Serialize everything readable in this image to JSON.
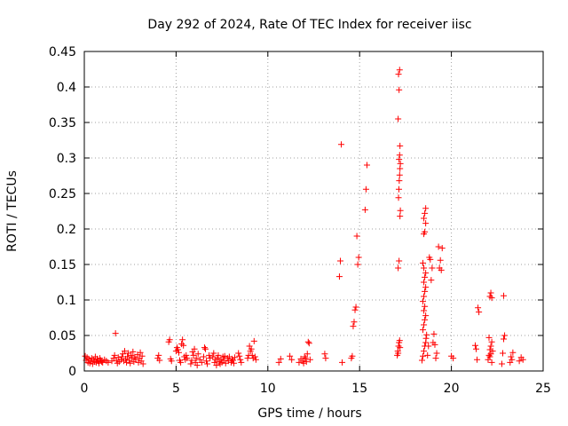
{
  "chart_data": {
    "type": "scatter",
    "title": "Day 292 of 2024, Rate Of TEC Index for receiver iisc",
    "xlabel": "GPS time / hours",
    "ylabel": "ROTI / TECUs",
    "xlim": [
      0,
      25
    ],
    "ylim": [
      0,
      0.45
    ],
    "x_ticks": [
      "0",
      "5",
      "10",
      "15",
      "20",
      "25"
    ],
    "y_ticks": [
      "0",
      "0.05",
      "0.1",
      "0.15",
      "0.2",
      "0.25",
      "0.3",
      "0.35",
      "0.4",
      "0.45"
    ],
    "grid": true,
    "marker": "+",
    "marker_color": "#ff0000",
    "series": [
      {
        "name": "ROTI",
        "points": [
          [
            0.05,
            0.021
          ],
          [
            0.1,
            0.015
          ],
          [
            0.15,
            0.019
          ],
          [
            0.2,
            0.012
          ],
          [
            0.25,
            0.017
          ],
          [
            0.3,
            0.011
          ],
          [
            0.35,
            0.014
          ],
          [
            0.4,
            0.018
          ],
          [
            0.45,
            0.01
          ],
          [
            0.5,
            0.016
          ],
          [
            0.55,
            0.013
          ],
          [
            0.6,
            0.02
          ],
          [
            0.65,
            0.012
          ],
          [
            0.7,
            0.017
          ],
          [
            0.75,
            0.014
          ],
          [
            0.8,
            0.011
          ],
          [
            0.85,
            0.018
          ],
          [
            0.9,
            0.015
          ],
          [
            0.95,
            0.013
          ],
          [
            1.0,
            0.012
          ],
          [
            1.1,
            0.016
          ],
          [
            1.2,
            0.014
          ],
          [
            1.3,
            0.012
          ],
          [
            1.5,
            0.014
          ],
          [
            1.6,
            0.018
          ],
          [
            1.65,
            0.022
          ],
          [
            1.7,
            0.053
          ],
          [
            1.75,
            0.015
          ],
          [
            1.8,
            0.011
          ],
          [
            1.85,
            0.019
          ],
          [
            1.9,
            0.013
          ],
          [
            2.0,
            0.016
          ],
          [
            2.05,
            0.02
          ],
          [
            2.1,
            0.024
          ],
          [
            2.15,
            0.014
          ],
          [
            2.2,
            0.028
          ],
          [
            2.25,
            0.017
          ],
          [
            2.3,
            0.012
          ],
          [
            2.35,
            0.02
          ],
          [
            2.4,
            0.025
          ],
          [
            2.45,
            0.015
          ],
          [
            2.5,
            0.011
          ],
          [
            2.55,
            0.022
          ],
          [
            2.6,
            0.018
          ],
          [
            2.65,
            0.027
          ],
          [
            2.7,
            0.013
          ],
          [
            2.75,
            0.02
          ],
          [
            2.8,
            0.016
          ],
          [
            2.9,
            0.023
          ],
          [
            2.95,
            0.012
          ],
          [
            3.0,
            0.018
          ],
          [
            3.05,
            0.026
          ],
          [
            3.1,
            0.014
          ],
          [
            3.15,
            0.021
          ],
          [
            3.2,
            0.01
          ],
          [
            4.0,
            0.018
          ],
          [
            4.05,
            0.022
          ],
          [
            4.1,
            0.015
          ],
          [
            4.6,
            0.041
          ],
          [
            4.65,
            0.044
          ],
          [
            4.7,
            0.017
          ],
          [
            4.75,
            0.014
          ],
          [
            5.0,
            0.028
          ],
          [
            5.05,
            0.033
          ],
          [
            5.1,
            0.03
          ],
          [
            5.15,
            0.026
          ],
          [
            5.2,
            0.015
          ],
          [
            5.25,
            0.012
          ],
          [
            5.3,
            0.038
          ],
          [
            5.35,
            0.044
          ],
          [
            5.4,
            0.036
          ],
          [
            5.45,
            0.02
          ],
          [
            5.5,
            0.016
          ],
          [
            5.55,
            0.022
          ],
          [
            5.6,
            0.018
          ],
          [
            5.8,
            0.01
          ],
          [
            5.85,
            0.015
          ],
          [
            5.9,
            0.027
          ],
          [
            5.95,
            0.022
          ],
          [
            6.0,
            0.031
          ],
          [
            6.05,
            0.012
          ],
          [
            6.1,
            0.018
          ],
          [
            6.15,
            0.008
          ],
          [
            6.2,
            0.024
          ],
          [
            6.3,
            0.016
          ],
          [
            6.4,
            0.012
          ],
          [
            6.5,
            0.02
          ],
          [
            6.55,
            0.033
          ],
          [
            6.6,
            0.031
          ],
          [
            6.65,
            0.014
          ],
          [
            6.7,
            0.01
          ],
          [
            6.8,
            0.022
          ],
          [
            6.85,
            0.018
          ],
          [
            7.0,
            0.02
          ],
          [
            7.05,
            0.025
          ],
          [
            7.1,
            0.012
          ],
          [
            7.15,
            0.016
          ],
          [
            7.2,
            0.008
          ],
          [
            7.25,
            0.018
          ],
          [
            7.3,
            0.022
          ],
          [
            7.35,
            0.013
          ],
          [
            7.4,
            0.01
          ],
          [
            7.45,
            0.016
          ],
          [
            7.5,
            0.012
          ],
          [
            7.55,
            0.02
          ],
          [
            7.6,
            0.015
          ],
          [
            7.65,
            0.021
          ],
          [
            7.7,
            0.011
          ],
          [
            7.8,
            0.018
          ],
          [
            7.85,
            0.014
          ],
          [
            7.9,
            0.02
          ],
          [
            8.0,
            0.012
          ],
          [
            8.05,
            0.017
          ],
          [
            8.1,
            0.015
          ],
          [
            8.15,
            0.011
          ],
          [
            8.2,
            0.019
          ],
          [
            8.4,
            0.025
          ],
          [
            8.45,
            0.021
          ],
          [
            8.5,
            0.016
          ],
          [
            8.55,
            0.012
          ],
          [
            8.9,
            0.018
          ],
          [
            8.95,
            0.022
          ],
          [
            9.0,
            0.035
          ],
          [
            9.05,
            0.028
          ],
          [
            9.1,
            0.031
          ],
          [
            9.15,
            0.022
          ],
          [
            9.2,
            0.018
          ],
          [
            9.25,
            0.042
          ],
          [
            9.3,
            0.02
          ],
          [
            9.35,
            0.016
          ],
          [
            10.6,
            0.012
          ],
          [
            10.7,
            0.017
          ],
          [
            11.2,
            0.021
          ],
          [
            11.3,
            0.016
          ],
          [
            11.7,
            0.012
          ],
          [
            11.8,
            0.017
          ],
          [
            11.9,
            0.014
          ],
          [
            11.95,
            0.011
          ],
          [
            12.0,
            0.02
          ],
          [
            12.05,
            0.018
          ],
          [
            12.1,
            0.013
          ],
          [
            12.15,
            0.024
          ],
          [
            12.2,
            0.041
          ],
          [
            12.25,
            0.039
          ],
          [
            12.3,
            0.016
          ],
          [
            13.1,
            0.024
          ],
          [
            13.15,
            0.018
          ],
          [
            13.9,
            0.133
          ],
          [
            13.95,
            0.155
          ],
          [
            14.0,
            0.319
          ],
          [
            14.05,
            0.012
          ],
          [
            14.55,
            0.018
          ],
          [
            14.6,
            0.021
          ],
          [
            14.65,
            0.063
          ],
          [
            14.7,
            0.069
          ],
          [
            14.75,
            0.086
          ],
          [
            14.8,
            0.09
          ],
          [
            14.85,
            0.19
          ],
          [
            14.9,
            0.15
          ],
          [
            14.95,
            0.16
          ],
          [
            15.3,
            0.227
          ],
          [
            15.35,
            0.256
          ],
          [
            15.4,
            0.29
          ],
          [
            17.05,
            0.022
          ],
          [
            17.08,
            0.028
          ],
          [
            17.1,
            0.025
          ],
          [
            17.12,
            0.035
          ],
          [
            17.15,
            0.04
          ],
          [
            17.18,
            0.043
          ],
          [
            17.2,
            0.033
          ],
          [
            17.1,
            0.145
          ],
          [
            17.15,
            0.155
          ],
          [
            17.2,
            0.218
          ],
          [
            17.22,
            0.226
          ],
          [
            17.12,
            0.244
          ],
          [
            17.14,
            0.256
          ],
          [
            17.16,
            0.268
          ],
          [
            17.18,
            0.276
          ],
          [
            17.2,
            0.285
          ],
          [
            17.22,
            0.292
          ],
          [
            17.15,
            0.298
          ],
          [
            17.18,
            0.304
          ],
          [
            17.2,
            0.317
          ],
          [
            17.1,
            0.355
          ],
          [
            17.15,
            0.396
          ],
          [
            17.12,
            0.418
          ],
          [
            17.18,
            0.424
          ],
          [
            18.4,
            0.015
          ],
          [
            18.45,
            0.021
          ],
          [
            18.5,
            0.028
          ],
          [
            18.55,
            0.035
          ],
          [
            18.6,
            0.04
          ],
          [
            18.62,
            0.046
          ],
          [
            18.65,
            0.051
          ],
          [
            18.45,
            0.058
          ],
          [
            18.5,
            0.065
          ],
          [
            18.55,
            0.072
          ],
          [
            18.6,
            0.078
          ],
          [
            18.5,
            0.085
          ],
          [
            18.55,
            0.091
          ],
          [
            18.45,
            0.098
          ],
          [
            18.5,
            0.105
          ],
          [
            18.55,
            0.112
          ],
          [
            18.6,
            0.118
          ],
          [
            18.5,
            0.125
          ],
          [
            18.55,
            0.132
          ],
          [
            18.6,
            0.138
          ],
          [
            18.5,
            0.145
          ],
          [
            18.45,
            0.152
          ],
          [
            18.55,
            0.196
          ],
          [
            18.6,
            0.208
          ],
          [
            18.5,
            0.215
          ],
          [
            18.55,
            0.222
          ],
          [
            18.6,
            0.229
          ],
          [
            18.5,
            0.193
          ],
          [
            18.7,
            0.022
          ],
          [
            18.75,
            0.035
          ],
          [
            18.8,
            0.16
          ],
          [
            18.85,
            0.157
          ],
          [
            18.9,
            0.128
          ],
          [
            18.95,
            0.145
          ],
          [
            19.0,
            0.04
          ],
          [
            19.05,
            0.052
          ],
          [
            19.1,
            0.037
          ],
          [
            19.15,
            0.018
          ],
          [
            19.2,
            0.025
          ],
          [
            19.3,
            0.175
          ],
          [
            19.35,
            0.145
          ],
          [
            19.4,
            0.156
          ],
          [
            19.45,
            0.142
          ],
          [
            19.5,
            0.173
          ],
          [
            20.0,
            0.021
          ],
          [
            20.1,
            0.018
          ],
          [
            21.3,
            0.036
          ],
          [
            21.35,
            0.031
          ],
          [
            21.4,
            0.016
          ],
          [
            21.45,
            0.089
          ],
          [
            21.5,
            0.083
          ],
          [
            22.0,
            0.016
          ],
          [
            22.05,
            0.022
          ],
          [
            22.1,
            0.03
          ],
          [
            22.15,
            0.035
          ],
          [
            22.2,
            0.041
          ],
          [
            22.05,
            0.047
          ],
          [
            22.1,
            0.105
          ],
          [
            22.15,
            0.11
          ],
          [
            22.2,
            0.103
          ],
          [
            22.1,
            0.02
          ],
          [
            22.15,
            0.024
          ],
          [
            22.2,
            0.012
          ],
          [
            22.25,
            0.028
          ],
          [
            22.75,
            0.01
          ],
          [
            22.8,
            0.025
          ],
          [
            22.85,
            0.045
          ],
          [
            22.9,
            0.05
          ],
          [
            22.85,
            0.106
          ],
          [
            23.2,
            0.012
          ],
          [
            23.25,
            0.02
          ],
          [
            23.3,
            0.016
          ],
          [
            23.35,
            0.026
          ],
          [
            23.7,
            0.014
          ],
          [
            23.8,
            0.019
          ],
          [
            23.9,
            0.016
          ]
        ]
      }
    ]
  }
}
